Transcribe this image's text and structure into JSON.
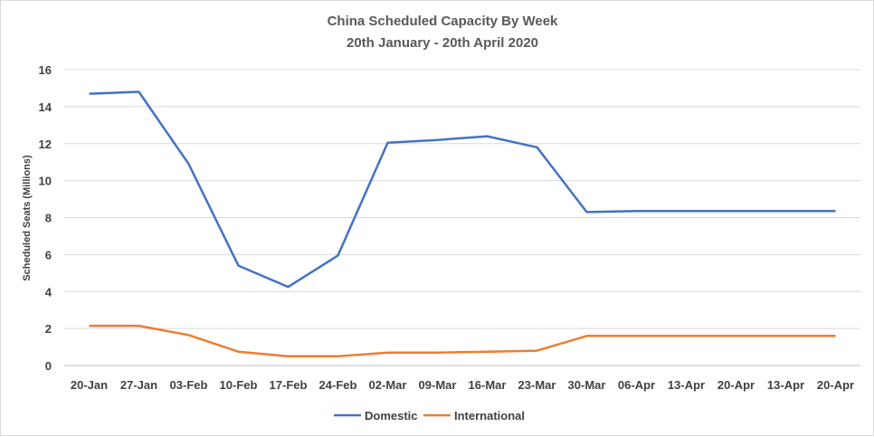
{
  "chart_data": {
    "type": "line",
    "title": "China Scheduled Capacity By Week",
    "subtitle": "20th January - 20th April 2020",
    "xlabel": "",
    "ylabel": "Scheduled Seats (Millions)",
    "ylim": [
      0,
      16
    ],
    "yticks": [
      0,
      2,
      4,
      6,
      8,
      10,
      12,
      14,
      16
    ],
    "grid": true,
    "legend": "bottom",
    "categories": [
      "20-Jan",
      "27-Jan",
      "03-Feb",
      "10-Feb",
      "17-Feb",
      "24-Feb",
      "02-Mar",
      "09-Mar",
      "16-Mar",
      "23-Mar",
      "30-Mar",
      "06-Apr",
      "13-Apr",
      "20-Apr",
      "13-Apr",
      "20-Apr"
    ],
    "series": [
      {
        "name": "Domestic",
        "color": "#4472c4",
        "values": [
          14.7,
          14.8,
          10.9,
          5.4,
          4.25,
          5.95,
          12.05,
          12.2,
          12.4,
          11.8,
          8.3,
          8.35,
          8.35,
          8.35,
          8.35,
          8.35
        ]
      },
      {
        "name": "International",
        "color": "#ed7d31",
        "values": [
          2.15,
          2.15,
          1.65,
          0.75,
          0.5,
          0.5,
          0.7,
          0.7,
          0.75,
          0.8,
          1.6,
          1.6,
          1.6,
          1.6,
          1.6,
          1.6
        ]
      }
    ]
  }
}
